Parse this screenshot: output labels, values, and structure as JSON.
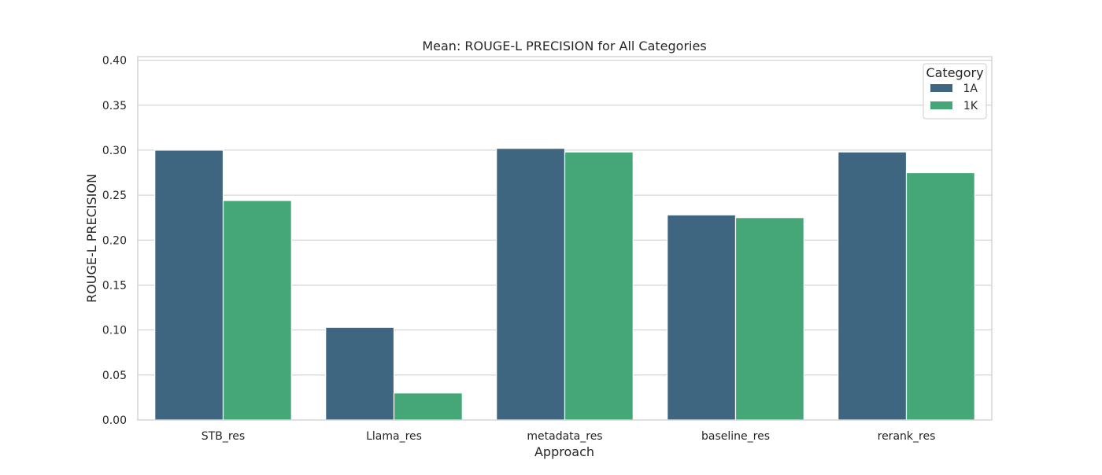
{
  "chart_data": {
    "type": "bar",
    "title": "Mean: ROUGE-L PRECISION for All Categories",
    "xlabel": "Approach",
    "ylabel": "ROUGE-L PRECISION",
    "categories": [
      "STB_res",
      "Llama_res",
      "metadata_res",
      "baseline_res",
      "rerank_res"
    ],
    "series": [
      {
        "name": "1A",
        "color": "#3e6680",
        "values": [
          0.3,
          0.103,
          0.302,
          0.228,
          0.298
        ]
      },
      {
        "name": "1K",
        "color": "#45a778",
        "values": [
          0.244,
          0.03,
          0.298,
          0.225,
          0.275
        ]
      }
    ],
    "ylim": [
      0,
      0.404
    ],
    "yticks": [
      "0.00",
      "0.05",
      "0.10",
      "0.15",
      "0.20",
      "0.25",
      "0.30",
      "0.35",
      "0.40"
    ],
    "grid": "horizontal",
    "legend": {
      "title": "Category",
      "placement": "top-right"
    }
  }
}
